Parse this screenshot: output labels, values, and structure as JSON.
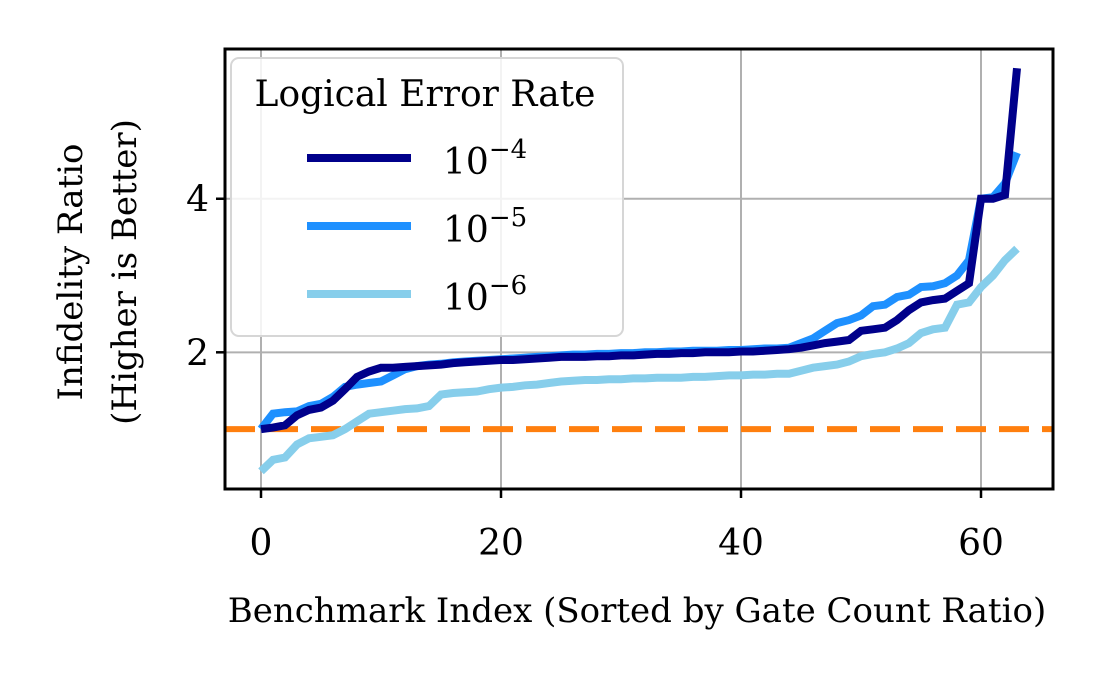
{
  "chart_data": {
    "type": "line",
    "title": "",
    "xlabel": "Benchmark Index (Sorted by Gate Count Ratio)",
    "ylabel_line1": "Infidelity Ratio",
    "ylabel_line2": "(Higher is Better)",
    "xlim": [
      -3,
      66
    ],
    "ylim": [
      0.22,
      5.95
    ],
    "xticks": [
      0,
      20,
      40,
      60
    ],
    "yticks": [
      2,
      4
    ],
    "grid": true,
    "legend": {
      "title": "Logical Error Rate",
      "placement": "top-left",
      "base": "10",
      "exponents": [
        "−4",
        "−5",
        "−6"
      ]
    },
    "reference_line": {
      "y": 1.0,
      "color": "#ff7f0e",
      "style": "dashed"
    },
    "series": [
      {
        "color": "#00008b",
        "x": [
          0,
          1,
          2,
          3,
          4,
          5,
          6,
          7,
          8,
          9,
          10,
          11,
          12,
          13,
          14,
          15,
          16,
          17,
          18,
          19,
          20,
          21,
          22,
          23,
          24,
          25,
          26,
          27,
          28,
          29,
          30,
          31,
          32,
          33,
          34,
          35,
          36,
          37,
          38,
          39,
          40,
          41,
          42,
          43,
          44,
          45,
          46,
          47,
          48,
          49,
          50,
          51,
          52,
          53,
          54,
          55,
          56,
          57,
          58,
          59,
          60,
          61,
          62,
          63
        ],
        "y": [
          1.0,
          1.02,
          1.05,
          1.18,
          1.25,
          1.28,
          1.37,
          1.52,
          1.68,
          1.75,
          1.8,
          1.8,
          1.81,
          1.82,
          1.83,
          1.84,
          1.86,
          1.87,
          1.88,
          1.89,
          1.9,
          1.9,
          1.91,
          1.92,
          1.93,
          1.94,
          1.94,
          1.94,
          1.95,
          1.95,
          1.96,
          1.96,
          1.97,
          1.98,
          1.98,
          1.99,
          1.99,
          2.0,
          2.0,
          2.0,
          2.01,
          2.01,
          2.02,
          2.03,
          2.04,
          2.06,
          2.09,
          2.12,
          2.14,
          2.16,
          2.28,
          2.3,
          2.32,
          2.42,
          2.55,
          2.65,
          2.68,
          2.7,
          2.8,
          2.9,
          4.0,
          4.0,
          4.05,
          5.7
        ]
      },
      {
        "color": "#1e90ff",
        "x": [
          0,
          1,
          2,
          3,
          4,
          5,
          6,
          7,
          8,
          9,
          10,
          11,
          12,
          13,
          14,
          15,
          16,
          17,
          18,
          19,
          20,
          21,
          22,
          23,
          24,
          25,
          26,
          27,
          28,
          29,
          30,
          31,
          32,
          33,
          34,
          35,
          36,
          37,
          38,
          39,
          40,
          41,
          42,
          43,
          44,
          45,
          46,
          47,
          48,
          49,
          50,
          51,
          52,
          53,
          54,
          55,
          56,
          57,
          58,
          59,
          60,
          61,
          62,
          63
        ],
        "y": [
          1.0,
          1.2,
          1.22,
          1.23,
          1.3,
          1.33,
          1.42,
          1.55,
          1.58,
          1.6,
          1.62,
          1.7,
          1.78,
          1.82,
          1.84,
          1.85,
          1.87,
          1.88,
          1.89,
          1.9,
          1.91,
          1.92,
          1.93,
          1.94,
          1.95,
          1.96,
          1.97,
          1.97,
          1.98,
          1.98,
          1.99,
          1.99,
          2.0,
          2.0,
          2.01,
          2.01,
          2.02,
          2.02,
          2.02,
          2.03,
          2.03,
          2.04,
          2.05,
          2.05,
          2.06,
          2.12,
          2.18,
          2.28,
          2.38,
          2.42,
          2.48,
          2.6,
          2.62,
          2.72,
          2.75,
          2.85,
          2.86,
          2.9,
          3.0,
          3.2,
          4.0,
          4.02,
          4.2,
          4.6
        ]
      },
      {
        "color": "#87ceeb",
        "x": [
          0,
          1,
          2,
          3,
          4,
          5,
          6,
          7,
          8,
          9,
          10,
          11,
          12,
          13,
          14,
          15,
          16,
          17,
          18,
          19,
          20,
          21,
          22,
          23,
          24,
          25,
          26,
          27,
          28,
          29,
          30,
          31,
          32,
          33,
          34,
          35,
          36,
          37,
          38,
          39,
          40,
          41,
          42,
          43,
          44,
          45,
          46,
          47,
          48,
          49,
          50,
          51,
          52,
          53,
          54,
          55,
          56,
          57,
          58,
          59,
          60,
          61,
          62,
          63
        ],
        "y": [
          0.45,
          0.6,
          0.63,
          0.8,
          0.88,
          0.9,
          0.92,
          1.0,
          1.1,
          1.2,
          1.22,
          1.24,
          1.26,
          1.27,
          1.3,
          1.45,
          1.47,
          1.48,
          1.49,
          1.52,
          1.54,
          1.55,
          1.57,
          1.58,
          1.6,
          1.62,
          1.63,
          1.64,
          1.64,
          1.65,
          1.65,
          1.66,
          1.66,
          1.67,
          1.67,
          1.67,
          1.68,
          1.68,
          1.69,
          1.7,
          1.7,
          1.71,
          1.71,
          1.72,
          1.72,
          1.76,
          1.8,
          1.82,
          1.84,
          1.88,
          1.95,
          1.98,
          2.0,
          2.05,
          2.12,
          2.25,
          2.3,
          2.32,
          2.62,
          2.65,
          2.85,
          3.0,
          3.2,
          3.35
        ]
      }
    ]
  }
}
